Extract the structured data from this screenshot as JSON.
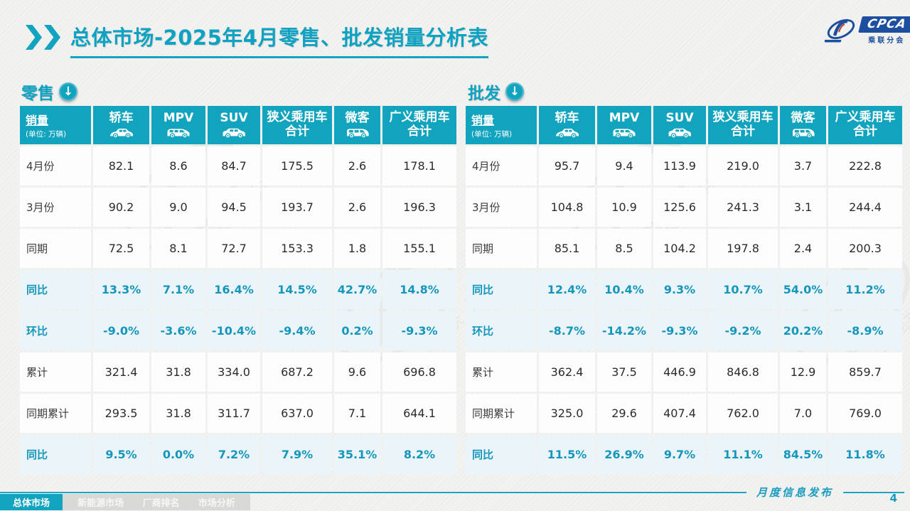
{
  "page": {
    "title_bold": "总体市场",
    "title_rest": "-2025年4月零售、批发销量分析表",
    "footer_note": "月度信息发布",
    "page_number": "4"
  },
  "logo": {
    "text": "CPCA",
    "subtext": "乘联分会"
  },
  "colors": {
    "accent_teal": "#12a3bf",
    "highlight_row_bg": "#eaf4f9",
    "highlight_text": "#1596ba",
    "logo_blue": "#1d4f9e",
    "inactive_tab_bg": "#d9d9d6"
  },
  "tabs": [
    {
      "label": "总体市场",
      "active": true
    },
    {
      "label": "新能源市场",
      "active": false
    },
    {
      "label": "厂商排名",
      "active": false
    },
    {
      "label": "市场分析",
      "active": false
    }
  ],
  "tables": [
    {
      "key": "retail",
      "title": "零售",
      "header": {
        "label": "销量",
        "unit": "(单位: 万辆)",
        "columns": [
          {
            "key": "sedan",
            "label": "轿车",
            "icon": "sedan-icon"
          },
          {
            "key": "mpv",
            "label": "MPV",
            "icon": "mpv-icon"
          },
          {
            "key": "suv",
            "label": "SUV",
            "icon": "suv-icon"
          },
          {
            "key": "narrow-pv-total",
            "label": "狭义乘用车\n合计"
          },
          {
            "key": "microvan",
            "label": "微客",
            "icon": "microvan-icon"
          },
          {
            "key": "broad-pv-total",
            "label": "广义乘用车\n合计"
          }
        ]
      },
      "rows": [
        {
          "label": "4月份",
          "highlight": false,
          "values": [
            "82.1",
            "8.6",
            "84.7",
            "175.5",
            "2.6",
            "178.1"
          ]
        },
        {
          "label": "3月份",
          "highlight": false,
          "values": [
            "90.2",
            "9.0",
            "94.5",
            "193.7",
            "2.6",
            "196.3"
          ]
        },
        {
          "label": "同期",
          "highlight": false,
          "values": [
            "72.5",
            "8.1",
            "72.7",
            "153.3",
            "1.8",
            "155.1"
          ]
        },
        {
          "label": "同比",
          "highlight": true,
          "values": [
            "13.3%",
            "7.1%",
            "16.4%",
            "14.5%",
            "42.7%",
            "14.8%"
          ]
        },
        {
          "label": "环比",
          "highlight": true,
          "values": [
            "-9.0%",
            "-3.6%",
            "-10.4%",
            "-9.4%",
            "0.2%",
            "-9.3%"
          ]
        },
        {
          "label": "累计",
          "highlight": false,
          "values": [
            "321.4",
            "31.8",
            "334.0",
            "687.2",
            "9.6",
            "696.8"
          ]
        },
        {
          "label": "同期累计",
          "highlight": false,
          "values": [
            "293.5",
            "31.8",
            "311.7",
            "637.0",
            "7.1",
            "644.1"
          ]
        },
        {
          "label": "同比",
          "highlight": true,
          "values": [
            "9.5%",
            "0.0%",
            "7.2%",
            "7.9%",
            "35.1%",
            "8.2%"
          ]
        }
      ]
    },
    {
      "key": "wholesale",
      "title": "批发",
      "header": {
        "label": "销量",
        "unit": "(单位: 万辆)",
        "columns": [
          {
            "key": "sedan",
            "label": "轿车",
            "icon": "sedan-icon"
          },
          {
            "key": "mpv",
            "label": "MPV",
            "icon": "mpv-icon"
          },
          {
            "key": "suv",
            "label": "SUV",
            "icon": "suv-icon"
          },
          {
            "key": "narrow-pv-total",
            "label": "狭义乘用车\n合计"
          },
          {
            "key": "microvan",
            "label": "微客",
            "icon": "microvan-icon"
          },
          {
            "key": "broad-pv-total",
            "label": "广义乘用车\n合计"
          }
        ]
      },
      "rows": [
        {
          "label": "4月份",
          "highlight": false,
          "values": [
            "95.7",
            "9.4",
            "113.9",
            "219.0",
            "3.7",
            "222.8"
          ]
        },
        {
          "label": "3月份",
          "highlight": false,
          "values": [
            "104.8",
            "10.9",
            "125.6",
            "241.3",
            "3.1",
            "244.4"
          ]
        },
        {
          "label": "同期",
          "highlight": false,
          "values": [
            "85.1",
            "8.5",
            "104.2",
            "197.8",
            "2.4",
            "200.3"
          ]
        },
        {
          "label": "同比",
          "highlight": true,
          "values": [
            "12.4%",
            "10.4%",
            "9.3%",
            "10.7%",
            "54.0%",
            "11.2%"
          ]
        },
        {
          "label": "环比",
          "highlight": true,
          "values": [
            "-8.7%",
            "-14.2%",
            "-9.3%",
            "-9.2%",
            "20.2%",
            "-8.9%"
          ]
        },
        {
          "label": "累计",
          "highlight": false,
          "values": [
            "362.4",
            "37.5",
            "446.9",
            "846.8",
            "12.9",
            "859.7"
          ]
        },
        {
          "label": "同期累计",
          "highlight": false,
          "values": [
            "325.0",
            "29.6",
            "407.4",
            "762.0",
            "7.0",
            "769.0"
          ]
        },
        {
          "label": "同比",
          "highlight": true,
          "values": [
            "11.5%",
            "26.9%",
            "9.7%",
            "11.1%",
            "84.5%",
            "11.8%"
          ]
        }
      ]
    }
  ]
}
